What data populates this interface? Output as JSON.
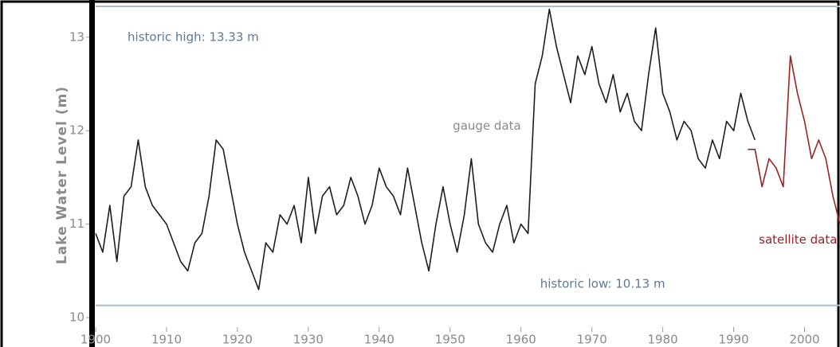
{
  "chart_data": {
    "type": "line",
    "y_label": "Lake Water Level (m)",
    "xlim": [
      1900,
      2005
    ],
    "xticks": [
      1900,
      1910,
      1920,
      1930,
      1940,
      1950,
      1960,
      1970,
      1980,
      1990,
      2000
    ],
    "ylim": [
      9.66,
      13.33
    ],
    "yticks": [
      10,
      11,
      12,
      13
    ],
    "grid": false,
    "reference_lines": [
      {
        "value": 13.33,
        "label": "historic high: 13.33 m",
        "color": "#a9bfd4"
      },
      {
        "value": 10.13,
        "label": "historic low: 10.13 m",
        "color": "#a9bfd4"
      }
    ],
    "series": [
      {
        "name": "gauge data",
        "color": "#1e1e1e",
        "x": [
          1900,
          1901,
          1902,
          1903,
          1904,
          1905,
          1906,
          1907,
          1908,
          1909,
          1910,
          1911,
          1912,
          1913,
          1914,
          1915,
          1916,
          1917,
          1918,
          1919,
          1920,
          1921,
          1922,
          1923,
          1924,
          1925,
          1926,
          1927,
          1928,
          1929,
          1930,
          1931,
          1932,
          1933,
          1934,
          1935,
          1936,
          1937,
          1938,
          1939,
          1940,
          1941,
          1942,
          1943,
          1944,
          1945,
          1946,
          1947,
          1948,
          1949,
          1950,
          1951,
          1952,
          1953,
          1954,
          1955,
          1956,
          1957,
          1958,
          1959,
          1960,
          1961,
          1962,
          1963,
          1964,
          1965,
          1966,
          1967,
          1968,
          1969,
          1970,
          1971,
          1972,
          1973,
          1974,
          1975,
          1976,
          1977,
          1978,
          1979,
          1980,
          1981,
          1982,
          1983,
          1984,
          1985,
          1986,
          1987,
          1988,
          1989,
          1990,
          1991,
          1992,
          1993
        ],
        "values": [
          10.9,
          10.7,
          11.2,
          10.6,
          11.3,
          11.4,
          11.9,
          11.4,
          11.2,
          11.1,
          11.0,
          10.8,
          10.6,
          10.5,
          10.8,
          10.9,
          11.3,
          11.9,
          11.8,
          11.4,
          11.0,
          10.7,
          10.5,
          10.3,
          10.8,
          10.7,
          11.1,
          11.0,
          11.2,
          10.8,
          11.5,
          10.9,
          11.3,
          11.4,
          11.1,
          11.2,
          11.5,
          11.3,
          11.0,
          11.2,
          11.6,
          11.4,
          11.3,
          11.1,
          11.6,
          11.2,
          10.8,
          10.5,
          11.0,
          11.4,
          11.0,
          10.7,
          11.1,
          11.7,
          11.0,
          10.8,
          10.7,
          11.0,
          11.2,
          10.8,
          11.0,
          10.9,
          12.5,
          12.8,
          13.3,
          12.9,
          12.6,
          12.3,
          12.8,
          12.6,
          12.9,
          12.5,
          12.3,
          12.6,
          12.2,
          12.4,
          12.1,
          12.0,
          12.6,
          13.1,
          12.4,
          12.2,
          11.9,
          12.1,
          12.0,
          11.7,
          11.6,
          11.9,
          11.7,
          12.1,
          12.0,
          12.4,
          12.1,
          11.9
        ]
      },
      {
        "name": "satellite data",
        "color": "#9b2226",
        "x": [
          1992,
          1993,
          1994,
          1995,
          1996,
          1997,
          1998,
          1999,
          2000,
          2001,
          2002,
          2003,
          2004,
          2005
        ],
        "values": [
          11.8,
          11.8,
          11.4,
          11.7,
          11.6,
          11.4,
          12.8,
          12.4,
          12.1,
          11.7,
          11.9,
          11.7,
          11.3,
          11.0
        ]
      }
    ]
  }
}
